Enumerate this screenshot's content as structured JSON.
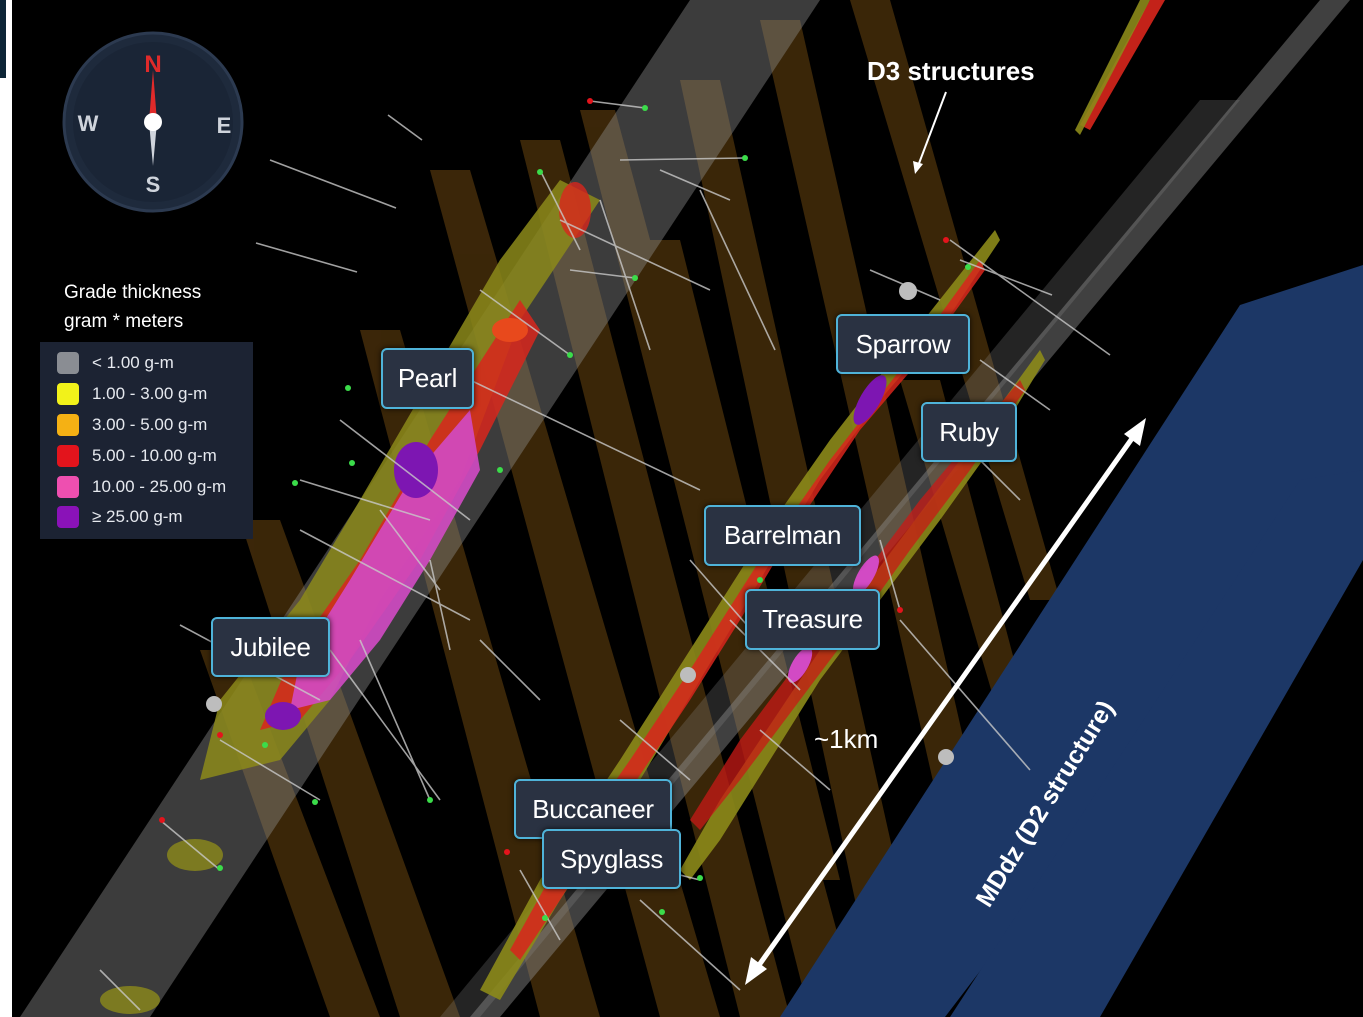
{
  "compass": {
    "north": "N",
    "south": "S",
    "east": "E",
    "west": "W"
  },
  "legend": {
    "title_line1": "Grade thickness",
    "title_line2": "gram * meters",
    "items": [
      {
        "label": "< 1.00 g-m",
        "color": "#8a8d93"
      },
      {
        "label": "1.00 - 3.00 g-m",
        "color": "#f2f21a"
      },
      {
        "label": "3.00 - 5.00 g-m",
        "color": "#f5b114"
      },
      {
        "label": "5.00 - 10.00 g-m",
        "color": "#e3141c"
      },
      {
        "label": "10.00 - 25.00 g-m",
        "color": "#ee4fb0"
      },
      {
        "label": "≥ 25.00 g-m",
        "color": "#8a12b8"
      }
    ]
  },
  "prospects": {
    "pearl": "Pearl",
    "jubilee": "Jubilee",
    "sparrow": "Sparrow",
    "ruby": "Ruby",
    "barrelman": "Barrelman",
    "treasure": "Treasure",
    "buccaneer": "Buccaneer",
    "spyglass": "Spyglass"
  },
  "annotations": {
    "d3_structures": "D3 structures",
    "scale": "~1km",
    "mddz": "MDdz (D2 structure)"
  },
  "colors": {
    "d3_plane": "#5a3a0a",
    "mddz_band": "#1c3766",
    "label_border": "#4fb3d9"
  }
}
